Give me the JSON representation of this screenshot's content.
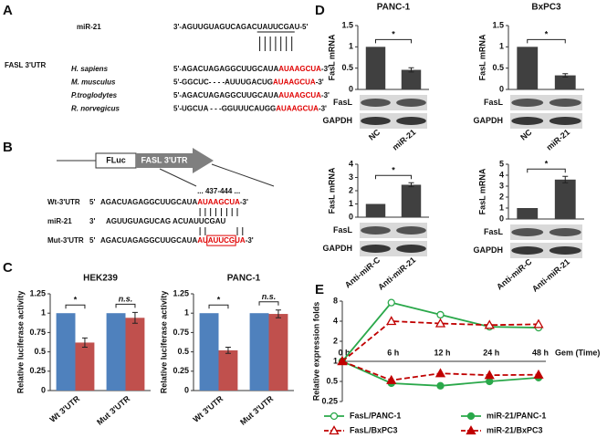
{
  "panel_labels": [
    "A",
    "B",
    "C",
    "D",
    "E"
  ],
  "panel_a": {
    "mir_label": "miR-21",
    "mir_seq": {
      "pre": "3'-AGUUGUAGUCAGAC",
      "site": "UAUUCGA",
      "post": "U-5'"
    },
    "utr_label": "FASL 3'UTR",
    "species": [
      {
        "name": "H. sapiens",
        "pre": "5'-AGACUAGAGGCUUGCAUA",
        "site": "AUAAGCUA",
        "post": "-3'"
      },
      {
        "name": "M. musculus",
        "pre": "5'-GGCUC- - - -AUUUGACUG",
        "site": "AUAAGCUA",
        "post": "-3'"
      },
      {
        "name": "P.troglodytes",
        "pre": "5'-AGACUAGAGGCUUGCAUA",
        "site": "AUAAGCUA",
        "post": "-3'"
      },
      {
        "name": "R. norvegicus",
        "pre": "5'-UGCUA - - -GGUUUCAUGG",
        "site": "AUAAGCUA",
        "post": "-3'"
      }
    ]
  },
  "panel_b": {
    "construct": [
      "FLuc",
      "FASL 3'UTR"
    ],
    "position": "... 437-444 ...",
    "rows": [
      {
        "label": "Wt-3'UTR",
        "end": "5'",
        "parts": [
          {
            "text": "AGACUAGAGGCUUGCAUA"
          },
          {
            "text": "AUAAGCUA",
            "style": "site"
          },
          {
            "text": "-3'"
          }
        ]
      },
      {
        "label": "miR-21",
        "end": "3'",
        "parts": [
          {
            "text": "AGUUGUAGUCAG ACUAUUCGAU"
          }
        ]
      },
      {
        "label": "Mut-3'UTR",
        "end": "5'",
        "parts": [
          {
            "text": "AGACUAGAGGCUUGCAUA"
          },
          {
            "text": "AU",
            "style": "site"
          },
          {
            "text": "AUUCG",
            "style": "boxed"
          },
          {
            "text": "UA",
            "style": "site"
          },
          {
            "text": "-3'"
          }
        ]
      }
    ]
  },
  "chart_data": [
    {
      "type": "bar",
      "title": "HEK239",
      "y_label": "Relative luciferase activity",
      "categories": [
        "Wt 3'UTR",
        "Mut 3'UTR"
      ],
      "series": [
        {
          "color": "#4f81bd",
          "values": [
            1,
            1
          ]
        },
        {
          "color": "#c0504d",
          "values": [
            0.62,
            0.94
          ],
          "errors": [
            0.06,
            0.07
          ]
        }
      ],
      "significance": [
        "*",
        "n.s."
      ],
      "ylim": [
        0,
        1.25
      ],
      "yticks": [
        0,
        0.25,
        0.5,
        0.75,
        1,
        1.25
      ]
    },
    {
      "type": "bar",
      "title": "PANC-1",
      "y_label": "Relative luciferase activity",
      "categories": [
        "Wt 3'UTR",
        "Mut 3'UTR"
      ],
      "series": [
        {
          "color": "#4f81bd",
          "values": [
            1,
            1
          ]
        },
        {
          "color": "#c0504d",
          "values": [
            0.52,
            0.99
          ],
          "errors": [
            0.04,
            0.05
          ]
        }
      ],
      "significance": [
        "*",
        "n.s."
      ],
      "ylim": [
        0,
        1.25
      ],
      "yticks": [
        0,
        0.25,
        0.5,
        0.75,
        1,
        1.25
      ]
    },
    {
      "type": "bar",
      "title": "PANC-1",
      "y_label": "FasL mRNA",
      "categories": [
        "NC",
        "miR-21"
      ],
      "series": [
        {
          "color": "#404040",
          "values": [
            1,
            0.46
          ],
          "errors": [
            null,
            0.05
          ]
        }
      ],
      "significance": "*",
      "blot_labels": [
        "FasL",
        "GAPDH"
      ],
      "ylim": [
        0,
        1.5
      ],
      "yticks": [
        0,
        0.5,
        1,
        1.5
      ]
    },
    {
      "type": "bar",
      "title": "BxPC3",
      "y_label": "FasL mRNA",
      "categories": [
        "NC",
        "miR-21"
      ],
      "series": [
        {
          "color": "#404040",
          "values": [
            1,
            0.33
          ],
          "errors": [
            null,
            0.04
          ]
        }
      ],
      "significance": "*",
      "blot_labels": [
        "FasL",
        "GAPDH"
      ],
      "ylim": [
        0,
        1.5
      ],
      "yticks": [
        0,
        0.5,
        1,
        1.5
      ]
    },
    {
      "type": "bar",
      "y_label": "FasL mRNA",
      "categories": [
        "Anti-miR-C",
        "Anti-miR-21"
      ],
      "series": [
        {
          "color": "#404040",
          "values": [
            1,
            2.45
          ],
          "errors": [
            null,
            0.15
          ]
        }
      ],
      "significance": "*",
      "blot_labels": [
        "FasL",
        "GAPDH"
      ],
      "ylim": [
        0,
        4
      ],
      "yticks": [
        0,
        1,
        2,
        3,
        4
      ]
    },
    {
      "type": "bar",
      "y_label": "FasL mRNA",
      "categories": [
        "Anti-miR-C",
        "Anti-miR-21"
      ],
      "series": [
        {
          "color": "#404040",
          "values": [
            1,
            3.6
          ],
          "errors": [
            null,
            0.3
          ]
        }
      ],
      "significance": "*",
      "blot_labels": [
        "FasL",
        "GAPDH"
      ],
      "ylim": [
        0,
        5
      ],
      "yticks": [
        0,
        1,
        2,
        3,
        4,
        5
      ]
    },
    {
      "type": "line",
      "y_label": "Relative expression folds",
      "x_label": "Gem (Time)",
      "categories": [
        "0 h",
        "6 h",
        "12 h",
        "24 h",
        "48 h"
      ],
      "log_scale": true,
      "ylim": [
        0.25,
        8
      ],
      "yticks": [
        0.25,
        0.5,
        1,
        2,
        4,
        8
      ],
      "legend": "bottom",
      "series": [
        {
          "name": "FasL/PANC-1",
          "color": "#2aa84a",
          "marker": "circle",
          "filled": false,
          "dashed": false,
          "values": [
            1,
            7.6,
            5,
            3.3,
            3.2
          ]
        },
        {
          "name": "miR-21/PANC-1",
          "color": "#2aa84a",
          "marker": "circle",
          "filled": true,
          "dashed": false,
          "values": [
            1,
            0.47,
            0.43,
            0.5,
            0.57
          ]
        },
        {
          "name": "FasL/BxPC3",
          "color": "#c00000",
          "marker": "triangle",
          "filled": false,
          "dashed": true,
          "values": [
            1,
            4,
            3.7,
            3.5,
            3.6
          ]
        },
        {
          "name": "miR-21/BxPC3",
          "color": "#c00000",
          "marker": "triangle",
          "filled": true,
          "dashed": true,
          "values": [
            1,
            0.52,
            0.66,
            0.62,
            0.63
          ]
        }
      ]
    }
  ]
}
